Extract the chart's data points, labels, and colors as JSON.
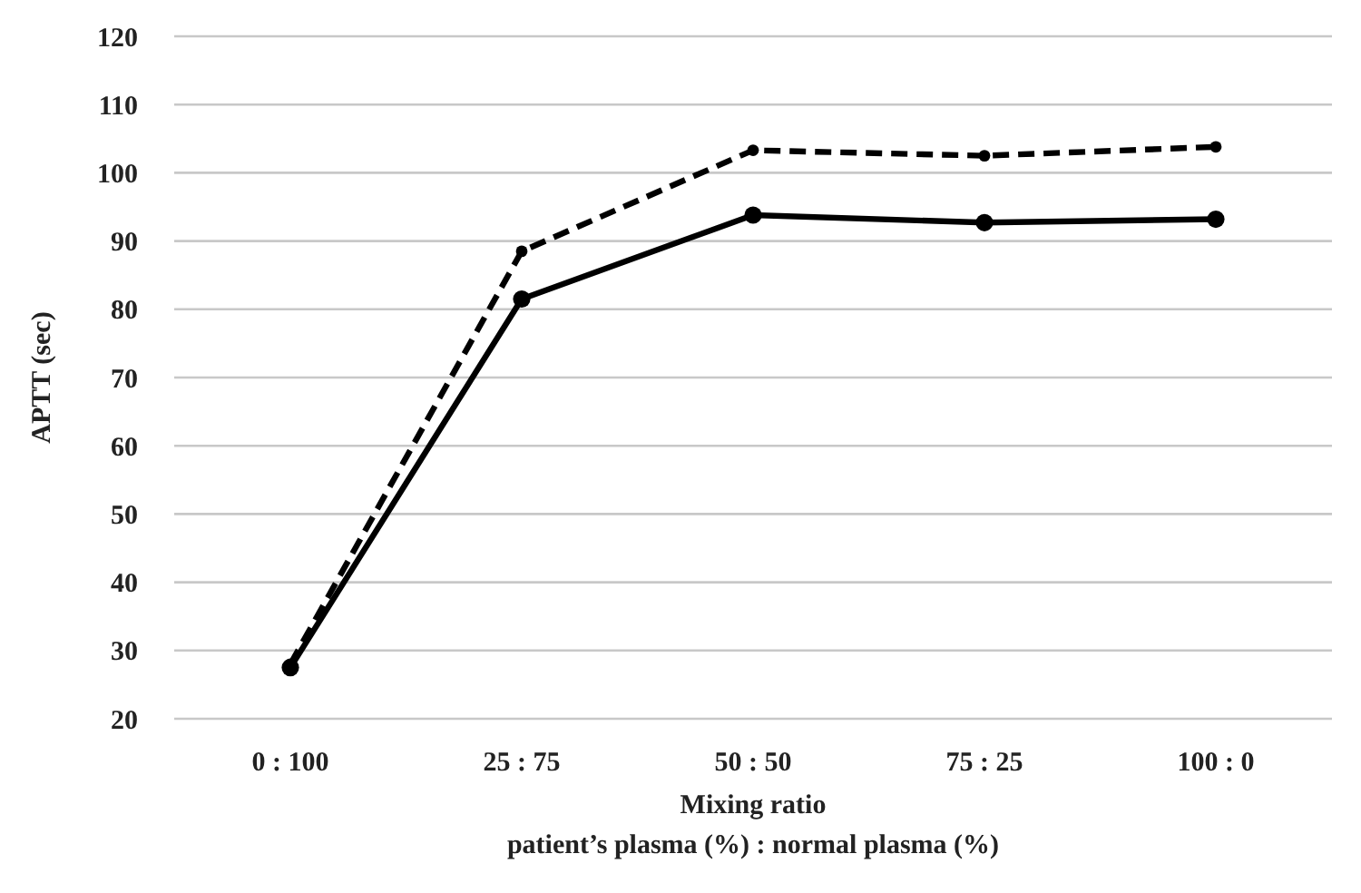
{
  "chart_data": {
    "type": "line",
    "xlabel": "Mixing ratio\npatient’s plasma (%) : normal plasma (%)",
    "ylabel": "APTT (sec)",
    "categories": [
      "0 : 100",
      "25 : 75",
      "50 : 50",
      "75 : 25",
      "100 : 0"
    ],
    "series": [
      {
        "color": "#000000",
        "line_style": "solid",
        "values": [
          27.5,
          81.5,
          93.8,
          92.7,
          93.2
        ]
      },
      {
        "color": "#000000",
        "line_style": "dashed",
        "values": [
          28,
          88.5,
          103.3,
          102.5,
          103.8
        ]
      }
    ],
    "ylim": [
      20,
      120
    ],
    "yticks": [
      20,
      30,
      40,
      50,
      60,
      70,
      80,
      90,
      100,
      110,
      120
    ],
    "grid": "y",
    "marker": "circle",
    "legend": false
  }
}
